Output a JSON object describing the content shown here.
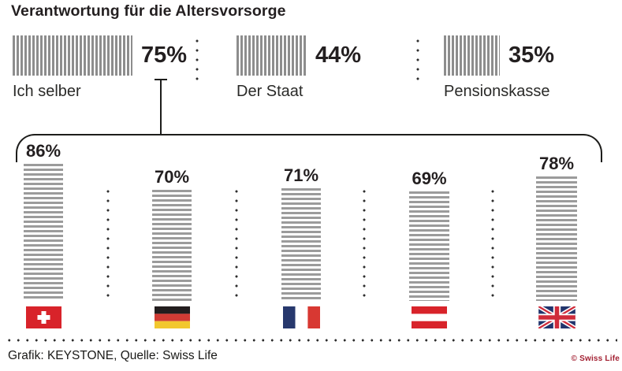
{
  "title": "Verantwortung für die Altersvorsorge",
  "top_row": {
    "items": [
      {
        "label": "Ich selber",
        "value": "75%",
        "pct": 75
      },
      {
        "label": "Der Staat",
        "value": "44%",
        "pct": 44
      },
      {
        "label": "Pensionskasse",
        "value": "35%",
        "pct": 35
      }
    ]
  },
  "bottom_row": {
    "items": [
      {
        "value": "86%",
        "pct": 86,
        "flag": "switzerland-flag-icon",
        "country": "Schweiz"
      },
      {
        "value": "70%",
        "pct": 70,
        "flag": "germany-flag-icon",
        "country": "Deutschland"
      },
      {
        "value": "71%",
        "pct": 71,
        "flag": "france-flag-icon",
        "country": "Frankreich"
      },
      {
        "value": "69%",
        "pct": 69,
        "flag": "austria-flag-icon",
        "country": "Österreich"
      },
      {
        "value": "78%",
        "pct": 78,
        "flag": "uk-flag-icon",
        "country": "Grossbritannien"
      }
    ]
  },
  "footer": {
    "source": "Grafik: KEYSTONE, Quelle: Swiss Life",
    "logo": "© Swiss Life"
  },
  "colors": {
    "stripe_gray_top": "#8d8d8d",
    "stripe_gray_bottom": "#9b9b9b",
    "text_dark": "#231f20",
    "line_dark": "#1d1d1b",
    "logo_red": "#a32032",
    "flag_red": "#d8232a",
    "flag_navy": "#22356d",
    "flag_gold": "#f2c72e"
  },
  "chart_data": [
    {
      "type": "bar",
      "orientation": "horizontal",
      "title": "Verantwortung für die Altersvorsorge",
      "categories": [
        "Ich selber",
        "Der Staat",
        "Pensionskasse"
      ],
      "values": [
        75,
        44,
        35
      ],
      "unit": "%",
      "xlim": [
        0,
        100
      ],
      "grid": false,
      "legend": false,
      "note": "striped bars, value labels right of bars"
    },
    {
      "type": "bar",
      "orientation": "vertical",
      "title": "Ich selber (75%) nach Land",
      "categories": [
        "Schweiz",
        "Deutschland",
        "Frankreich",
        "Österreich",
        "Grossbritannien"
      ],
      "values": [
        86,
        70,
        71,
        69,
        78
      ],
      "unit": "%",
      "ylim": [
        0,
        100
      ],
      "grid": false,
      "legend": false,
      "note": "striped columns with country flags as x-axis labels; bracket links this group to the 'Ich selber 75%' bar above"
    }
  ]
}
